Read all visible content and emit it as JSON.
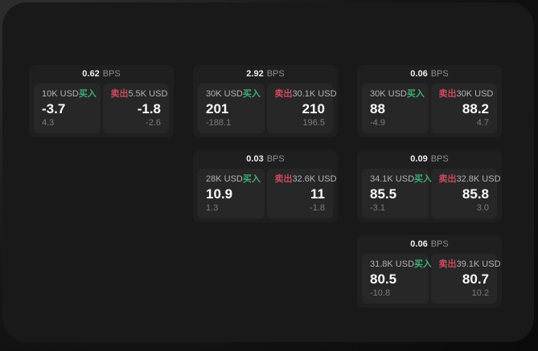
{
  "colors": {
    "buy": "#3fae74",
    "sell": "#cc4a5f",
    "window_bg": "#191919",
    "card_bg": "#1f1f1f",
    "tile_bg": "#272727"
  },
  "cards": [
    {
      "bps_value": "0.62",
      "bps_unit": "BPS",
      "buy": {
        "amount": "10K USD",
        "side_label": "买入",
        "price": "-3.7",
        "delta": "4.3"
      },
      "sell": {
        "side_label": "卖出",
        "amount": "5.5K USD",
        "price": "-1.8",
        "delta": "-2.6"
      }
    },
    {
      "bps_value": "2.92",
      "bps_unit": "BPS",
      "buy": {
        "amount": "30K USD",
        "side_label": "买入",
        "price": "201",
        "delta": "-188.1"
      },
      "sell": {
        "side_label": "卖出",
        "amount": "30.1K USD",
        "price": "210",
        "delta": "196.5"
      }
    },
    {
      "bps_value": "0.06",
      "bps_unit": "BPS",
      "buy": {
        "amount": "30K USD",
        "side_label": "买入",
        "price": "88",
        "delta": "-4.9"
      },
      "sell": {
        "side_label": "卖出",
        "amount": "30K USD",
        "price": "88.2",
        "delta": "4.7"
      }
    },
    {
      "bps_value": "0.03",
      "bps_unit": "BPS",
      "buy": {
        "amount": "28K USD",
        "side_label": "买入",
        "price": "10.9",
        "delta": "1.3"
      },
      "sell": {
        "side_label": "卖出",
        "amount": "32.6K USD",
        "price": "11",
        "delta": "-1.8"
      }
    },
    {
      "bps_value": "0.09",
      "bps_unit": "BPS",
      "buy": {
        "amount": "34.1K USD",
        "side_label": "买入",
        "price": "85.5",
        "delta": "-3.1"
      },
      "sell": {
        "side_label": "卖出",
        "amount": "32.8K USD",
        "price": "85.8",
        "delta": "3.0"
      }
    },
    {
      "bps_value": "0.06",
      "bps_unit": "BPS",
      "buy": {
        "amount": "31.8K USD",
        "side_label": "买入",
        "price": "80.5",
        "delta": "-10.8"
      },
      "sell": {
        "side_label": "卖出",
        "amount": "39.1K USD",
        "price": "80.7",
        "delta": "10.2"
      }
    }
  ]
}
